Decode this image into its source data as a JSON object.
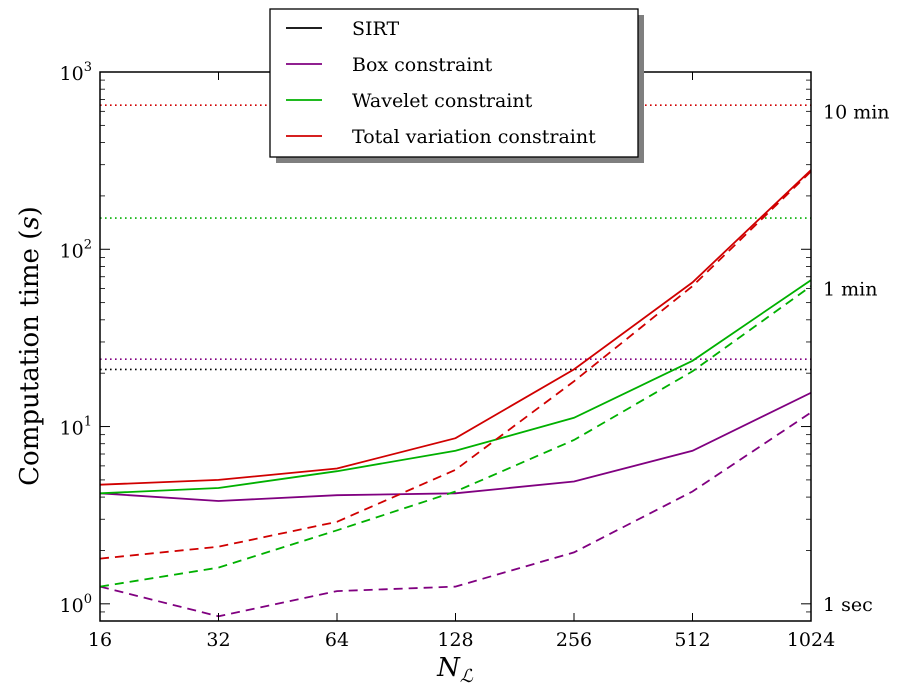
{
  "chart_data": {
    "type": "line",
    "xlabel": "N",
    "xlabel_subscript": "ℒ",
    "ylabel_prefix": "Computation time (",
    "ylabel_var": "s",
    "ylabel_suffix": ")",
    "x_scale": "log2",
    "y_scale": "log10",
    "xlim": [
      16,
      1024
    ],
    "ylim": [
      0.8,
      1000
    ],
    "x_ticks": [
      16,
      32,
      64,
      128,
      256,
      512,
      1024
    ],
    "x_tick_labels": [
      "16",
      "32",
      "64",
      "128",
      "256",
      "512",
      "1024"
    ],
    "y_ticks": [
      {
        "value": 1,
        "base": "10",
        "exp": "0"
      },
      {
        "value": 10,
        "base": "10",
        "exp": "1"
      },
      {
        "value": 100,
        "base": "10",
        "exp": "2"
      },
      {
        "value": 1000,
        "base": "10",
        "exp": "3"
      }
    ],
    "right_axis_labels": [
      {
        "value": 1,
        "label": "1 sec"
      },
      {
        "value": 60,
        "label": "1 min"
      },
      {
        "value": 600,
        "label": "10 min"
      }
    ],
    "grid": false,
    "legend_position": "top-center",
    "series": [
      {
        "name": "SIRT",
        "color": "#000000",
        "style": "dotted",
        "constant": 21
      },
      {
        "name": "Box constraint",
        "color": "#800080",
        "solid": {
          "x": [
            16,
            32,
            64,
            128,
            256,
            512,
            1024
          ],
          "y": [
            4.2,
            3.8,
            4.1,
            4.2,
            4.9,
            7.3,
            15.5
          ]
        },
        "dashed": {
          "x": [
            16,
            32,
            64,
            128,
            256,
            512,
            1024
          ],
          "y": [
            1.25,
            0.85,
            1.18,
            1.25,
            1.95,
            4.3,
            12.0
          ]
        },
        "dotted": 24
      },
      {
        "name": "Wavelet constraint",
        "color": "#00b000",
        "solid": {
          "x": [
            16,
            32,
            64,
            128,
            256,
            512,
            1024
          ],
          "y": [
            4.2,
            4.5,
            5.6,
            7.3,
            11.2,
            23.5,
            67
          ]
        },
        "dashed": {
          "x": [
            16,
            32,
            64,
            128,
            256,
            512,
            1024
          ],
          "y": [
            1.25,
            1.6,
            2.6,
            4.3,
            8.4,
            20.5,
            62
          ]
        },
        "dotted": 150
      },
      {
        "name": "Total variation constraint",
        "color": "#d00000",
        "solid": {
          "x": [
            16,
            32,
            64,
            128,
            256,
            512,
            1024
          ],
          "y": [
            4.7,
            5.0,
            5.8,
            8.6,
            21,
            65,
            280
          ]
        },
        "dashed": {
          "x": [
            16,
            32,
            64,
            128,
            256,
            512,
            1024
          ],
          "y": [
            1.8,
            2.1,
            2.9,
            5.7,
            18,
            62,
            275
          ]
        },
        "dotted": 650
      }
    ]
  }
}
